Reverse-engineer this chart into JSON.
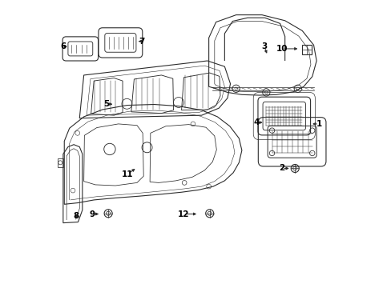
{
  "bg_color": "#ffffff",
  "line_color": "#2d2d2d",
  "label_color": "#000000",
  "fig_width": 4.89,
  "fig_height": 3.6,
  "dpi": 100
}
